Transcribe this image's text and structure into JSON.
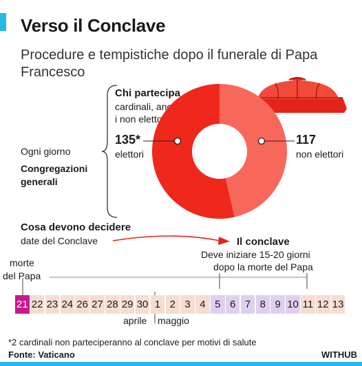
{
  "header": {
    "title": "Verso il Conclave",
    "subtitle": "Procedure e tempistiche dopo il funerale di Papa Francesco"
  },
  "left": {
    "ogni_giorno": "Ogni giorno",
    "congregazioni_line1": "Congregazioni",
    "congregazioni_line2": "generali"
  },
  "chi": {
    "title": "Chi partecipa",
    "line1": "cardinali, anche",
    "line2": "i non elettori"
  },
  "donut": {
    "electors_value": "135*",
    "electors_label": "elettori",
    "non_electors_value": "117",
    "non_electors_label": "non elettori",
    "electors_share": 135,
    "non_electors_share": 117,
    "electors_color": "#f0271b",
    "non_electors_color": "#f7685a"
  },
  "decide": {
    "title": "Cosa devono decidere",
    "subtitle": "date del Conclave"
  },
  "conclave": {
    "title": "Il conclave",
    "line1": "Deve iniziare 15-20 giorni",
    "line2": "dopo la morte del Papa"
  },
  "timeline": {
    "death_label_1": "morte",
    "death_label_2": "del Papa",
    "days": [
      {
        "label": "21",
        "kind": "death"
      },
      {
        "label": "22",
        "kind": "april"
      },
      {
        "label": "23",
        "kind": "april"
      },
      {
        "label": "24",
        "kind": "april"
      },
      {
        "label": "26",
        "kind": "april"
      },
      {
        "label": "27",
        "kind": "april"
      },
      {
        "label": "28",
        "kind": "april"
      },
      {
        "label": "29",
        "kind": "april"
      },
      {
        "label": "30",
        "kind": "april"
      },
      {
        "label": "1",
        "kind": "may"
      },
      {
        "label": "2",
        "kind": "may"
      },
      {
        "label": "3",
        "kind": "may"
      },
      {
        "label": "4",
        "kind": "may"
      },
      {
        "label": "5",
        "kind": "window"
      },
      {
        "label": "6",
        "kind": "window"
      },
      {
        "label": "7",
        "kind": "window"
      },
      {
        "label": "8",
        "kind": "window"
      },
      {
        "label": "9",
        "kind": "window"
      },
      {
        "label": "10",
        "kind": "window"
      },
      {
        "label": "11",
        "kind": "may"
      },
      {
        "label": "12",
        "kind": "may"
      },
      {
        "label": "13",
        "kind": "may"
      }
    ],
    "month_april": "aprile",
    "month_may": "maggio",
    "colors": {
      "death": "#c8188e",
      "april": "#f7ddd0",
      "may": "#f7ddd0",
      "window": "#e0d0f0"
    }
  },
  "footer": {
    "note": "*2 cardinali non parteciperanno al conclave per motivi di salute",
    "source": "Fonte: Vaticano",
    "brand": "WITHUB"
  },
  "colors": {
    "accent": "#29b6e8",
    "red": "#f0271b",
    "red_light": "#f7685a"
  }
}
